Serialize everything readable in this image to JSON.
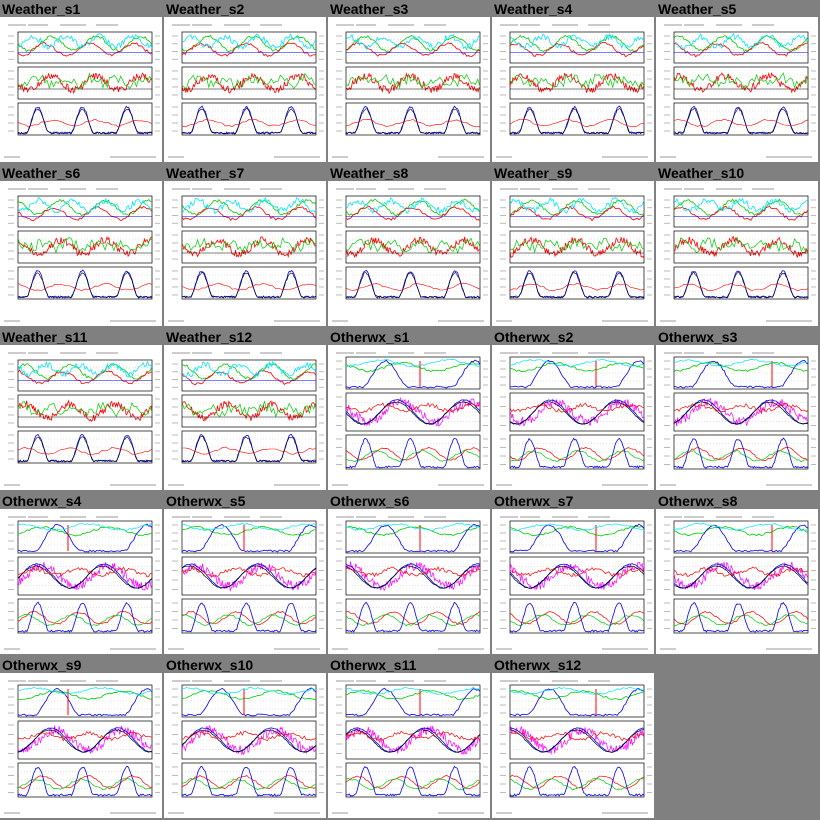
{
  "colors": {
    "background": "#808080",
    "thumb_background": "#ffffff",
    "series": [
      "#0000ff",
      "#00cc00",
      "#ff0000",
      "#00e5ff",
      "#ff00ff",
      "#000000"
    ]
  },
  "thumbnails": [
    {
      "title": "Weather_s1",
      "kind": "weather"
    },
    {
      "title": "Weather_s2",
      "kind": "weather"
    },
    {
      "title": "Weather_s3",
      "kind": "weather"
    },
    {
      "title": "Weather_s4",
      "kind": "weather"
    },
    {
      "title": "Weather_s5",
      "kind": "weather"
    },
    {
      "title": "Weather_s6",
      "kind": "weather"
    },
    {
      "title": "Weather_s7",
      "kind": "weather"
    },
    {
      "title": "Weather_s8",
      "kind": "weather"
    },
    {
      "title": "Weather_s9",
      "kind": "weather"
    },
    {
      "title": "Weather_s10",
      "kind": "weather"
    },
    {
      "title": "Weather_s11",
      "kind": "weather"
    },
    {
      "title": "Weather_s12",
      "kind": "weather"
    },
    {
      "title": "Otherwx_s1",
      "kind": "otherwx"
    },
    {
      "title": "Otherwx_s2",
      "kind": "otherwx"
    },
    {
      "title": "Otherwx_s3",
      "kind": "otherwx"
    },
    {
      "title": "Otherwx_s4",
      "kind": "otherwx"
    },
    {
      "title": "Otherwx_s5",
      "kind": "otherwx"
    },
    {
      "title": "Otherwx_s6",
      "kind": "otherwx"
    },
    {
      "title": "Otherwx_s7",
      "kind": "otherwx"
    },
    {
      "title": "Otherwx_s8",
      "kind": "otherwx"
    },
    {
      "title": "Otherwx_s9",
      "kind": "otherwx"
    },
    {
      "title": "Otherwx_s10",
      "kind": "otherwx"
    },
    {
      "title": "Otherwx_s11",
      "kind": "otherwx"
    },
    {
      "title": "Otherwx_s12",
      "kind": "otherwx"
    }
  ]
}
